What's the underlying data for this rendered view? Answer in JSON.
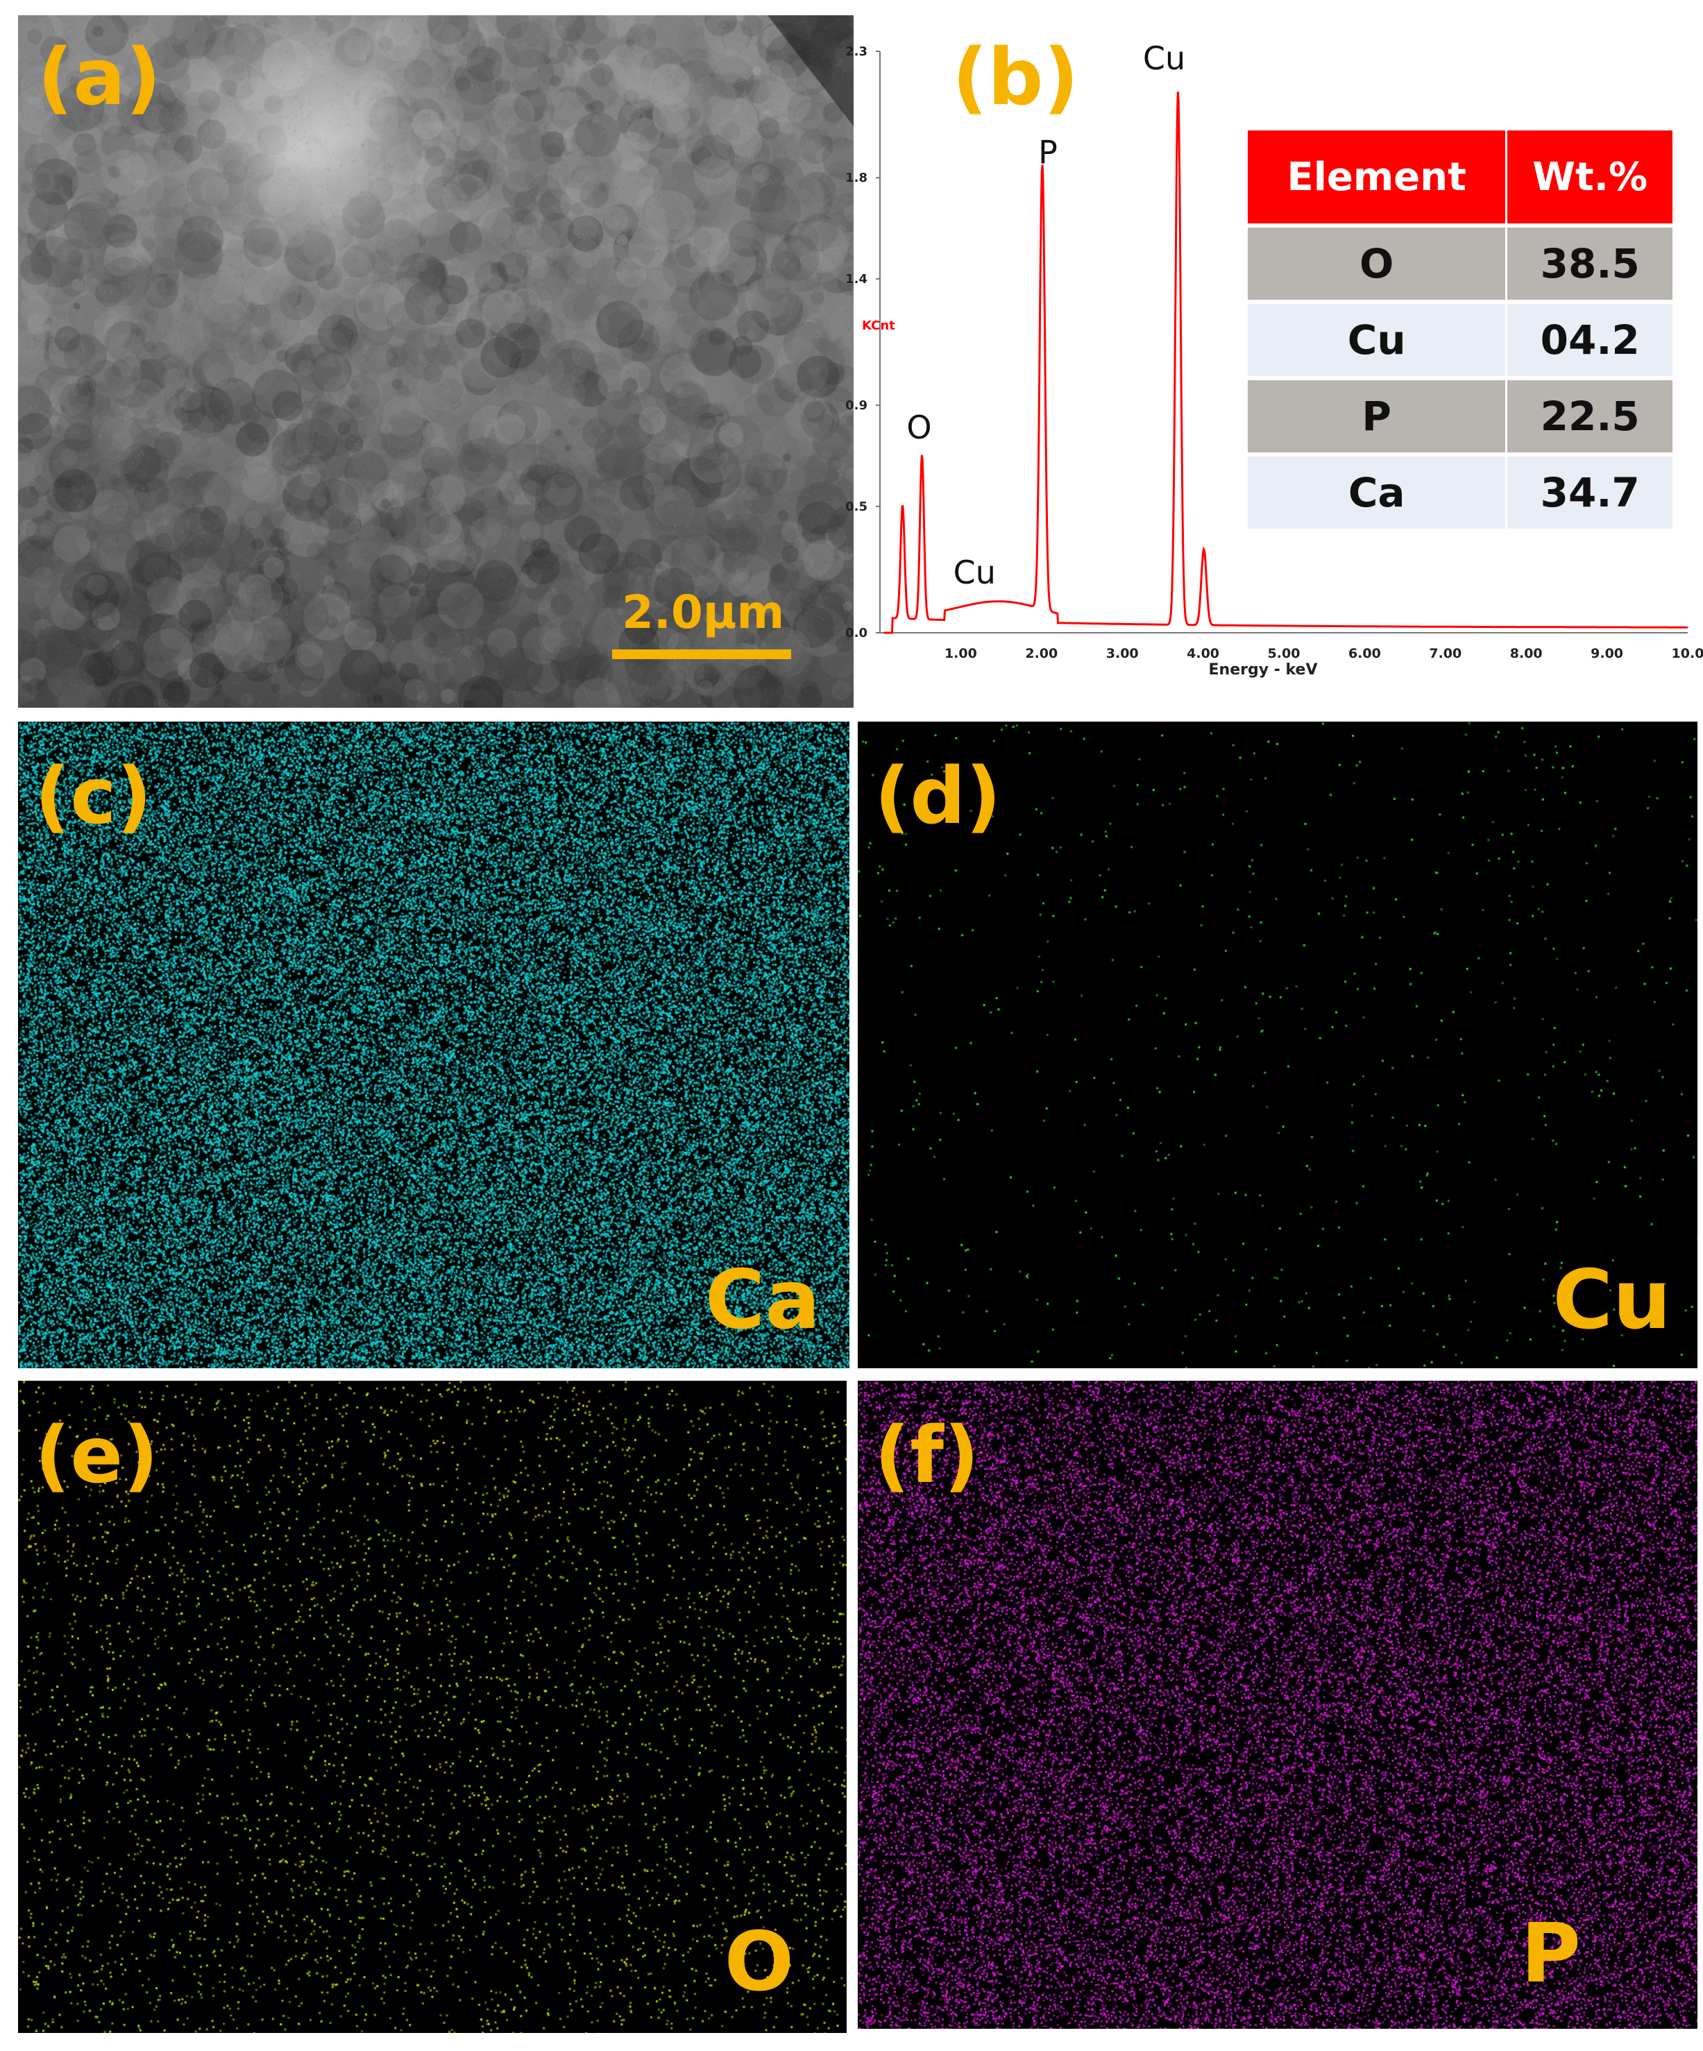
{
  "panels": {
    "a": {
      "label": "(a)",
      "scale_bar": "2.0μm"
    },
    "b": {
      "label": "(b)"
    },
    "c": {
      "label": "(c)",
      "element": "Ca",
      "color": "#14d3d6"
    },
    "d": {
      "label": "(d)",
      "element": "Cu",
      "color": "#2ee82e"
    },
    "e": {
      "label": "(e)",
      "element": "O",
      "color": "#d7d700"
    },
    "f": {
      "label": "(f)",
      "element": "P",
      "color": "#d21cd2"
    }
  },
  "chart_data": {
    "type": "line",
    "title": "",
    "xlabel": "Energy - keV",
    "ylabel": "KCnt",
    "xlim": [
      0,
      10.0
    ],
    "ylim": [
      0,
      2.3
    ],
    "x_ticks": [
      "1.00",
      "2.00",
      "3.00",
      "4.00",
      "5.00",
      "6.00",
      "7.00",
      "8.00",
      "9.00",
      "10.0"
    ],
    "y_ticks": [
      "0.0",
      "0.5",
      "0.9",
      "1.4",
      "1.8",
      "2.3"
    ],
    "line_color": "#ff0000",
    "peaks": [
      {
        "element": "O",
        "x": 0.52,
        "y": 0.67
      },
      {
        "element": "Cu",
        "x": 0.93,
        "y": 0.08
      },
      {
        "element": "P",
        "x": 2.01,
        "y": 1.78
      },
      {
        "element": "Cu",
        "x": 3.69,
        "y": 2.13
      }
    ],
    "minor_peaks": [
      {
        "x": 0.28,
        "y": 0.47
      },
      {
        "x": 4.01,
        "y": 0.32
      }
    ],
    "table": {
      "headers": [
        "Element",
        "Wt.%"
      ],
      "rows": [
        [
          "O",
          "38.5"
        ],
        [
          "Cu",
          "04.2"
        ],
        [
          "P",
          "22.5"
        ],
        [
          "Ca",
          "34.7"
        ]
      ],
      "header_color": "#ff0000"
    }
  }
}
